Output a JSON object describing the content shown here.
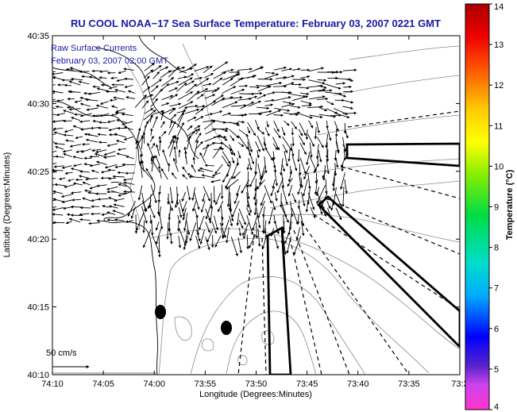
{
  "title": "RU COOL  NOAA−17  Sea Surface Temperature:  February 03, 2007 0221 GMT",
  "overlay_lines": [
    "Raw Surface Currents",
    "February 03, 2007 02:00 GMT"
  ],
  "xaxis": {
    "label": "Longitude (Degrees:Minutes)",
    "ticks": [
      "74:10",
      "74:05",
      "74:00",
      "73:55",
      "73:50",
      "73:45",
      "73:40",
      "73:35",
      "73:3"
    ]
  },
  "yaxis": {
    "label": "Latitude (Degrees:Minutes)",
    "ticks": [
      "40:35",
      "40:30",
      "40:25",
      "40:20",
      "40:15",
      "40:10"
    ]
  },
  "scale_label": "50 cm/s",
  "colorbar": {
    "label": "Temperature (°C)",
    "ticks": [
      "14",
      "13",
      "12",
      "11",
      "10",
      "9",
      "8",
      "7",
      "6",
      "5",
      "4"
    ],
    "min": 4,
    "max": 14
  },
  "colors": {
    "title": "#1a1aa6",
    "coast": "#000000",
    "contour": "#8a8a8a"
  }
}
